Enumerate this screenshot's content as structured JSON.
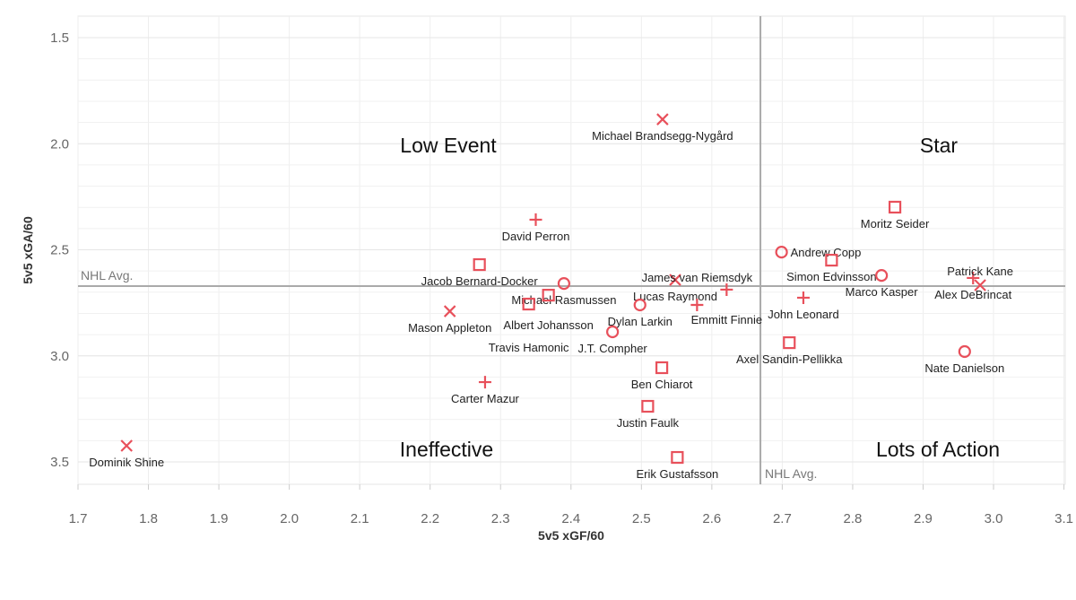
{
  "chart_data": {
    "type": "scatter",
    "xlabel": "5v5 xGF/60",
    "ylabel": "5v5 xGA/60",
    "xlim": [
      1.7,
      3.13
    ],
    "ylim": [
      1.4,
      3.61
    ],
    "y_inverted": true,
    "grid": true,
    "xticks": [
      "1.7",
      "1.8",
      "1.9",
      "2.0",
      "2.1",
      "2.2",
      "2.3",
      "2.4",
      "2.5",
      "2.6",
      "2.7",
      "2.8",
      "2.9",
      "3.0",
      "3.1"
    ],
    "yticks": [
      "1.5",
      "2.0",
      "2.5",
      "3.0",
      "3.5"
    ],
    "reference_lines": {
      "x": 2.669,
      "y": 2.671,
      "label": "NHL Avg."
    },
    "quadrant_labels": {
      "top_left": "Low Event",
      "top_right": "Star",
      "bottom_left": "Ineffective",
      "bottom_right": "Lots of Action"
    },
    "marker_color": "#e8505b",
    "points": [
      {
        "name": "Michael Brandsegg-Nygård",
        "x": 2.53,
        "y": 1.885,
        "marker": "x"
      },
      {
        "name": "David Perron",
        "x": 2.35,
        "y": 2.358,
        "marker": "plus"
      },
      {
        "name": "Jacob Bernard-Docker",
        "x": 2.27,
        "y": 2.57,
        "marker": "square"
      },
      {
        "name": "Michael Rasmussen",
        "x": 2.39,
        "y": 2.659,
        "marker": "circle"
      },
      {
        "name": "Albert Johansson",
        "x": 2.368,
        "y": 2.714,
        "marker": "square"
      },
      {
        "name": "Travis Hamonic",
        "x": 2.34,
        "y": 2.756,
        "marker": "square"
      },
      {
        "name": "Mason Appleton",
        "x": 2.228,
        "y": 2.79,
        "marker": "x"
      },
      {
        "name": "Lucas Raymond",
        "x": 2.548,
        "y": 2.642,
        "marker": "x"
      },
      {
        "name": "Dylan Larkin",
        "x": 2.498,
        "y": 2.76,
        "marker": "circle"
      },
      {
        "name": "James van Riemsdyk",
        "x": 2.579,
        "y": 2.76,
        "marker": "plus"
      },
      {
        "name": "Emmitt Finnie",
        "x": 2.621,
        "y": 2.688,
        "marker": "plus"
      },
      {
        "name": "J.T. Compher",
        "x": 2.459,
        "y": 2.887,
        "marker": "circle"
      },
      {
        "name": "Andrew Copp",
        "x": 2.699,
        "y": 2.511,
        "marker": "circle"
      },
      {
        "name": "Simon Edvinsson",
        "x": 2.77,
        "y": 2.549,
        "marker": "square"
      },
      {
        "name": "Marco Kasper",
        "x": 2.841,
        "y": 2.621,
        "marker": "circle"
      },
      {
        "name": "John Leonard",
        "x": 2.73,
        "y": 2.726,
        "marker": "plus"
      },
      {
        "name": "Moritz Seider",
        "x": 2.86,
        "y": 2.299,
        "marker": "square"
      },
      {
        "name": "Alex DeBrincat",
        "x": 2.971,
        "y": 2.633,
        "marker": "plus"
      },
      {
        "name": "Patrick Kane",
        "x": 2.981,
        "y": 2.667,
        "marker": "x"
      },
      {
        "name": "Axel Sandin-Pellikka",
        "x": 2.71,
        "y": 2.938,
        "marker": "square"
      },
      {
        "name": "Nate Danielson",
        "x": 2.959,
        "y": 2.98,
        "marker": "circle"
      },
      {
        "name": "Ben Chiarot",
        "x": 2.529,
        "y": 3.056,
        "marker": "square"
      },
      {
        "name": "Carter Mazur",
        "x": 2.278,
        "y": 3.124,
        "marker": "plus"
      },
      {
        "name": "Justin Faulk",
        "x": 2.509,
        "y": 3.238,
        "marker": "square"
      },
      {
        "name": "Dominik Shine",
        "x": 1.769,
        "y": 3.424,
        "marker": "x"
      },
      {
        "name": "Erik Gustafsson",
        "x": 2.551,
        "y": 3.479,
        "marker": "square"
      }
    ]
  }
}
